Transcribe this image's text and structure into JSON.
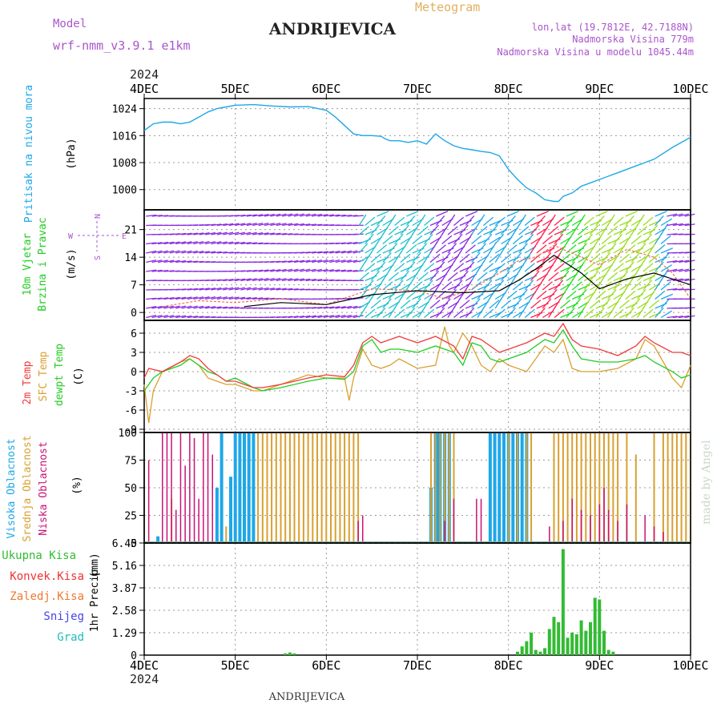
{
  "header": {
    "model_label": "Model",
    "model_name": "wrf-nmm_v3.9.1  e1km",
    "meteogram_label": "Meteogram",
    "station_title": "ANDRIJEVICA",
    "coords": "lon,lat (19.7812E, 42.7188N)",
    "elevation": "Nadmorska Visina 779m",
    "model_elevation": "Nadmorska Visina u modelu 1045.44m",
    "footer_station": "ANDRIJEVICA",
    "credit": "made by Angel",
    "year_top": "2024",
    "year_bottom": "2024"
  },
  "colors": {
    "pressure": "#1ea7e8",
    "temp2m": "#f03a3a",
    "sfc_temp": "#d9a030",
    "dewpoint": "#22cc22",
    "high_cloud": "#1ea7e8",
    "mid_cloud": "#d9a030",
    "low_cloud": "#cc1177",
    "total_precip": "#33bb33",
    "wind_label": "#22cc22",
    "wind_speed": "#000000",
    "wind_gust": "#f07050",
    "purple_text": "#aa55cc"
  },
  "chart_data": [
    {
      "type": "line",
      "panel": "pressure",
      "ylabel": "Pritisak na nivou mora",
      "unit": "(hPa)",
      "x_ticks": [
        "4DEC",
        "5DEC",
        "6DEC",
        "7DEC",
        "8DEC",
        "9DEC",
        "10DEC"
      ],
      "yticks": [
        1000,
        1008,
        1016,
        1024
      ],
      "ylim": [
        994,
        1027
      ],
      "grid": true,
      "series": [
        {
          "x": [
            0,
            0.1,
            0.2,
            0.3,
            0.4,
            0.5,
            0.6,
            0.7,
            0.8,
            0.9,
            1.0,
            1.2,
            1.4,
            1.6,
            1.8,
            2.0,
            2.1,
            2.2,
            2.3,
            2.4,
            2.5,
            2.6,
            2.65,
            2.7,
            2.8,
            2.9,
            3.0,
            3.1,
            3.2,
            3.3,
            3.4,
            3.5,
            3.6,
            3.7,
            3.8,
            3.9,
            4.0,
            4.1,
            4.2,
            4.3,
            4.4,
            4.5,
            4.55,
            4.6,
            4.7,
            4.8,
            4.9,
            5.0,
            5.2,
            5.4,
            5.6,
            5.8,
            6.0
          ],
          "values": [
            1017.5,
            1019.5,
            1020,
            1020,
            1019.5,
            1020,
            1021.5,
            1023,
            1024,
            1024.5,
            1025,
            1025.2,
            1024.8,
            1024.5,
            1024.6,
            1023.5,
            1021.5,
            1019,
            1016.5,
            1016,
            1016,
            1015.8,
            1015,
            1014.5,
            1014.5,
            1014,
            1014.5,
            1013.5,
            1016.5,
            1014.5,
            1013,
            1012.2,
            1011.8,
            1011.3,
            1011,
            1010,
            1006,
            1003,
            1000.5,
            999,
            997,
            996.5,
            996.5,
            998,
            999,
            1001,
            1002,
            1003,
            1005,
            1007,
            1009,
            1012.5,
            1015.5
          ]
        }
      ]
    },
    {
      "type": "line",
      "panel": "wind",
      "ylabel_1": "10m Vjetar",
      "ylabel_2": "Brzina i Pravac",
      "unit": "(m/s)",
      "compass": {
        "n": "N",
        "s": "S",
        "w": "W",
        "e": "E"
      },
      "yticks": [
        0,
        7,
        14,
        21
      ],
      "ylim": [
        -2,
        26
      ],
      "grid": true,
      "series": [
        {
          "name": "speed",
          "x": [
            1.1,
            1.5,
            2.0,
            2.5,
            3.0,
            3.5,
            3.9,
            4.1,
            4.3,
            4.5,
            4.8,
            5.0,
            5.3,
            5.6,
            5.8,
            6.0
          ],
          "values": [
            1.5,
            2.5,
            2.0,
            4.5,
            5.5,
            5.0,
            5.5,
            8.0,
            11.0,
            14.5,
            10.0,
            6.0,
            8.5,
            10.0,
            8.5,
            7.0
          ]
        },
        {
          "name": "gust",
          "x": [
            0.2,
            0.6,
            1.0,
            1.5,
            2.0,
            2.5,
            3.0,
            3.3,
            3.6,
            3.9,
            4.1,
            4.3,
            4.5,
            4.8,
            5.0,
            5.3,
            5.6,
            5.8,
            6.0
          ],
          "values": [
            1.5,
            3.0,
            2.5,
            3.5,
            2.0,
            6.0,
            5.5,
            3.5,
            6.0,
            10.0,
            13.0,
            14.0,
            17.0,
            14.0,
            12.0,
            16.0,
            14.0,
            10.0,
            3.5
          ]
        }
      ]
    },
    {
      "type": "line",
      "panel": "temperature",
      "ylabel_1": "2m Temp",
      "ylabel_2": "SFC Temp",
      "ylabel_3": "dewpt Temp",
      "unit": "(C)",
      "yticks": [
        -9,
        -6,
        -3,
        0,
        3,
        6
      ],
      "ylim": [
        -9.5,
        8
      ],
      "grid": true,
      "series": [
        {
          "name": "2m",
          "x": [
            0,
            0.05,
            0.2,
            0.4,
            0.5,
            0.6,
            0.7,
            0.8,
            0.9,
            1.0,
            1.2,
            1.3,
            1.5,
            1.8,
            2.0,
            2.2,
            2.3,
            2.4,
            2.5,
            2.6,
            2.7,
            2.8,
            3.0,
            3.2,
            3.4,
            3.5,
            3.6,
            3.7,
            3.8,
            3.9,
            4.0,
            4.2,
            4.4,
            4.5,
            4.6,
            4.7,
            4.8,
            5.0,
            5.2,
            5.4,
            5.5,
            5.6,
            5.8,
            5.9,
            6.0
          ],
          "values": [
            -1,
            0.5,
            0,
            1.5,
            2.5,
            2,
            0.5,
            -0.5,
            -1.5,
            -1.5,
            -2.5,
            -2.5,
            -2,
            -1,
            -0.5,
            -0.8,
            1,
            4.5,
            5.5,
            4.5,
            5,
            5.5,
            4.5,
            5.5,
            4,
            2,
            5.5,
            5,
            4,
            3,
            3.5,
            4.5,
            6,
            5.5,
            7.5,
            5,
            4,
            3.5,
            2.5,
            4,
            5.5,
            4.5,
            3,
            3,
            2.5
          ]
        },
        {
          "name": "sfc",
          "x": [
            0,
            0.05,
            0.1,
            0.2,
            0.4,
            0.5,
            0.6,
            0.7,
            0.8,
            0.9,
            1.0,
            1.2,
            1.3,
            1.5,
            1.8,
            2.0,
            2.2,
            2.25,
            2.3,
            2.4,
            2.5,
            2.6,
            2.7,
            2.8,
            3.0,
            3.2,
            3.3,
            3.35,
            3.4,
            3.5,
            3.6,
            3.7,
            3.8,
            3.9,
            4.0,
            4.2,
            4.4,
            4.5,
            4.6,
            4.7,
            4.8,
            5.0,
            5.2,
            5.4,
            5.5,
            5.6,
            5.8,
            5.9,
            6.0
          ],
          "values": [
            -2,
            -8,
            -3,
            0,
            1.5,
            2,
            1,
            -1,
            -1.5,
            -2,
            -2,
            -3,
            -3,
            -2,
            -0.5,
            -1,
            -1,
            -4.5,
            -1,
            3.5,
            1,
            0.5,
            1,
            2,
            0.5,
            1,
            7,
            4,
            3,
            6,
            4,
            1,
            0,
            2,
            1,
            0,
            4,
            3,
            5,
            0.5,
            0,
            0,
            0.5,
            2,
            5,
            4,
            -1,
            -2.5,
            1
          ]
        },
        {
          "name": "dewpt",
          "x": [
            0,
            0.1,
            0.2,
            0.4,
            0.5,
            0.6,
            0.7,
            0.8,
            0.9,
            1.0,
            1.2,
            1.3,
            1.5,
            1.8,
            2.0,
            2.2,
            2.3,
            2.4,
            2.5,
            2.6,
            2.7,
            2.8,
            3.0,
            3.2,
            3.4,
            3.5,
            3.6,
            3.7,
            3.8,
            3.9,
            4.0,
            4.2,
            4.4,
            4.5,
            4.6,
            4.7,
            4.8,
            5.0,
            5.2,
            5.4,
            5.5,
            5.6,
            5.8,
            5.9,
            6.0
          ],
          "values": [
            -3,
            -1,
            0,
            1,
            2,
            1,
            0,
            -0.5,
            -1.5,
            -1,
            -2.5,
            -3,
            -2.5,
            -1.5,
            -1,
            -1.2,
            0,
            4,
            5,
            3,
            3.5,
            3.5,
            3,
            4,
            3,
            1,
            4.5,
            4,
            2,
            1.5,
            2,
            3,
            5,
            4.5,
            6.5,
            4,
            2,
            1.5,
            1.5,
            2,
            2.5,
            1.5,
            0,
            -1,
            -0.5
          ]
        }
      ]
    },
    {
      "type": "bar",
      "panel": "clouds",
      "ylabel_1": "Visoka Oblacnost",
      "ylabel_2": "Srednja Oblacnost",
      "ylabel_3": "Niska Oblacnost",
      "unit": "(%)",
      "yticks": [
        0,
        25,
        50,
        75,
        100
      ],
      "ylim": [
        0,
        100
      ],
      "grid": true,
      "series": [
        {
          "name": "high",
          "x": [
            0.15,
            0.8,
            0.85,
            0.95,
            1.0,
            1.05,
            1.1,
            1.15,
            1.2,
            3.15,
            3.2,
            3.22,
            3.25,
            3.3,
            3.35,
            3.8,
            3.85,
            3.9,
            3.95,
            4.0,
            4.05,
            4.1,
            4.15,
            4.2
          ],
          "values": [
            6,
            50,
            100,
            60,
            100,
            100,
            100,
            100,
            100,
            50,
            100,
            100,
            100,
            100,
            100,
            100,
            100,
            100,
            100,
            100,
            100,
            100,
            100,
            100
          ]
        },
        {
          "name": "mid",
          "x": [
            0.3,
            0.9,
            1.25,
            1.3,
            1.35,
            1.4,
            1.45,
            1.5,
            1.55,
            1.6,
            1.65,
            1.7,
            1.75,
            1.8,
            1.85,
            1.9,
            1.95,
            2.0,
            2.05,
            2.1,
            2.15,
            2.2,
            2.25,
            2.3,
            2.35,
            3.15,
            3.2,
            3.25,
            3.3,
            3.35,
            3.4,
            4.0,
            4.1,
            4.2,
            4.25,
            4.5,
            4.55,
            4.6,
            4.65,
            4.7,
            4.75,
            4.8,
            4.85,
            4.9,
            4.95,
            5.0,
            5.05,
            5.1,
            5.15,
            5.2,
            5.3,
            5.4,
            5.6,
            5.7,
            5.75,
            5.8,
            5.85,
            5.9,
            5.95,
            6.0
          ],
          "values": [
            40,
            15,
            100,
            100,
            100,
            100,
            100,
            100,
            100,
            100,
            100,
            100,
            100,
            100,
            100,
            100,
            100,
            100,
            100,
            100,
            100,
            100,
            100,
            100,
            100,
            100,
            100,
            100,
            100,
            100,
            100,
            100,
            100,
            100,
            100,
            100,
            100,
            100,
            100,
            100,
            100,
            100,
            100,
            100,
            100,
            100,
            100,
            100,
            100,
            100,
            100,
            80,
            100,
            100,
            100,
            100,
            100,
            100,
            100,
            100
          ]
        },
        {
          "name": "low",
          "x": [
            0.05,
            0.2,
            0.25,
            0.3,
            0.35,
            0.4,
            0.45,
            0.5,
            0.55,
            0.6,
            0.65,
            0.7,
            0.75,
            2.35,
            2.4,
            3.3,
            3.4,
            3.65,
            3.7,
            4.45,
            4.6,
            4.7,
            4.8,
            4.9,
            5.0,
            5.05,
            5.1,
            5.2,
            5.3,
            5.5,
            5.6,
            5.7
          ],
          "values": [
            75,
            100,
            100,
            100,
            30,
            100,
            70,
            100,
            95,
            40,
            100,
            100,
            80,
            20,
            25,
            20,
            40,
            40,
            40,
            15,
            20,
            40,
            30,
            25,
            35,
            50,
            30,
            20,
            35,
            25,
            15,
            10
          ]
        }
      ]
    },
    {
      "type": "bar",
      "panel": "precip",
      "ylabel_1": "1hr Precip",
      "unit": "(mm)",
      "legend": [
        "Ukupna Kisa",
        "Konvek.Kisa",
        "Zaledj.Kisa",
        "Snijeg",
        "Grad"
      ],
      "yticks": [
        0,
        1.29,
        2.58,
        3.87,
        5.16,
        6.45
      ],
      "ylim": [
        0,
        6.45
      ],
      "grid": true,
      "series": [
        {
          "name": "Ukupna Kisa",
          "x": [
            1.55,
            1.6,
            1.65,
            4.1,
            4.15,
            4.2,
            4.25,
            4.3,
            4.35,
            4.4,
            4.45,
            4.5,
            4.55,
            4.6,
            4.65,
            4.7,
            4.75,
            4.8,
            4.85,
            4.9,
            4.95,
            5.0,
            5.05,
            5.1,
            5.15
          ],
          "values": [
            0.1,
            0.15,
            0.1,
            0.2,
            0.5,
            0.8,
            1.3,
            0.3,
            0.2,
            0.4,
            1.5,
            2.2,
            1.9,
            6.1,
            1.0,
            1.3,
            1.2,
            2.0,
            1.4,
            1.9,
            3.3,
            3.2,
            1.4,
            0.3,
            0.2
          ]
        }
      ]
    }
  ]
}
